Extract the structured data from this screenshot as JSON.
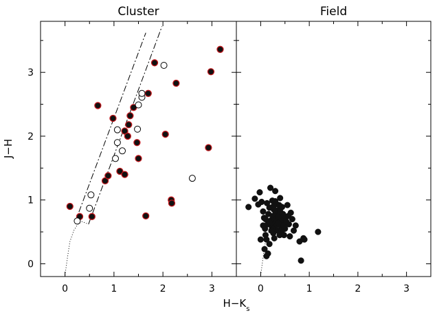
{
  "chart_data": [
    {
      "type": "scatter",
      "title": "Cluster",
      "xlabel": "H−K",
      "xlabel_sub": "s",
      "ylabel": "J−H",
      "xlim": [
        -0.5,
        3.5
      ],
      "ylim": [
        -0.2,
        3.8
      ],
      "x_ticks": [
        0,
        1,
        2,
        3
      ],
      "x_tick_labels": [
        "0",
        "1",
        "2",
        "3"
      ],
      "y_ticks": [
        0,
        1,
        2,
        3
      ],
      "y_tick_labels": [
        "0",
        "1",
        "2",
        "3"
      ],
      "grid": false,
      "series": [
        {
          "marker": "filled-circle-red-edge",
          "points": [
            [
              0.1,
              0.9
            ],
            [
              0.3,
              0.74
            ],
            [
              0.55,
              0.74
            ],
            [
              0.67,
              2.48
            ],
            [
              0.82,
              1.3
            ],
            [
              0.88,
              1.38
            ],
            [
              0.98,
              2.28
            ],
            [
              1.12,
              1.45
            ],
            [
              1.22,
              1.4
            ],
            [
              1.22,
              2.08
            ],
            [
              1.28,
              2.0
            ],
            [
              1.3,
              2.18
            ],
            [
              1.33,
              2.32
            ],
            [
              1.4,
              2.45
            ],
            [
              1.47,
              1.9
            ],
            [
              1.5,
              1.65
            ],
            [
              1.65,
              0.75
            ],
            [
              1.7,
              2.67
            ],
            [
              1.83,
              3.15
            ],
            [
              2.05,
              2.03
            ],
            [
              2.17,
              1.0
            ],
            [
              2.18,
              0.95
            ],
            [
              2.27,
              2.83
            ],
            [
              2.93,
              1.82
            ],
            [
              2.98,
              3.01
            ],
            [
              3.17,
              3.36
            ]
          ]
        },
        {
          "marker": "open-circle",
          "points": [
            [
              0.25,
              0.67
            ],
            [
              0.5,
              0.87
            ],
            [
              0.53,
              1.08
            ],
            [
              1.03,
              1.65
            ],
            [
              1.07,
              1.9
            ],
            [
              1.07,
              2.1
            ],
            [
              1.17,
              1.77
            ],
            [
              1.48,
              2.11
            ],
            [
              1.5,
              2.49
            ],
            [
              1.57,
              2.61
            ],
            [
              1.57,
              2.67
            ],
            [
              2.02,
              3.11
            ],
            [
              2.6,
              1.34
            ]
          ]
        }
      ],
      "curves": [
        {
          "style": "dotted",
          "points": [
            [
              0.0,
              -0.18
            ],
            [
              0.05,
              0.1
            ],
            [
              0.1,
              0.35
            ],
            [
              0.18,
              0.52
            ],
            [
              0.26,
              0.62
            ],
            [
              0.35,
              0.66
            ],
            [
              0.48,
              0.62
            ]
          ]
        },
        {
          "style": "dash-dot",
          "points": [
            [
              0.2,
              0.64
            ],
            [
              1.65,
              3.62
            ]
          ]
        },
        {
          "style": "dash-dot",
          "points": [
            [
              0.48,
              0.62
            ],
            [
              1.98,
              3.72
            ]
          ]
        }
      ]
    },
    {
      "type": "scatter",
      "title": "Field",
      "xlabel": "H−K",
      "xlabel_sub": "s",
      "xlim": [
        -0.5,
        3.5
      ],
      "ylim": [
        -0.2,
        3.8
      ],
      "x_ticks": [
        0,
        1,
        2,
        3
      ],
      "x_tick_labels": [
        "0",
        "1",
        "2",
        "3"
      ],
      "y_ticks": [
        0,
        1,
        2,
        3
      ],
      "y_tick_labels": [],
      "grid": false,
      "series": [
        {
          "marker": "filled-circle-black",
          "points": [
            [
              -0.25,
              0.89
            ],
            [
              -0.12,
              1.02
            ],
            [
              -0.05,
              0.93
            ],
            [
              -0.02,
              1.12
            ],
            [
              0.02,
              0.97
            ],
            [
              0.05,
              0.82
            ],
            [
              0.07,
              0.72
            ],
            [
              0.09,
              0.55
            ],
            [
              0.1,
              0.45
            ],
            [
              0.12,
              0.38
            ],
            [
              0.14,
              0.62
            ],
            [
              0.16,
              0.78
            ],
            [
              0.18,
              0.88
            ],
            [
              0.2,
              1.19
            ],
            [
              0.21,
              0.68
            ],
            [
              0.23,
              0.58
            ],
            [
              0.24,
              0.99
            ],
            [
              0.25,
              0.75
            ],
            [
              0.26,
              0.48
            ],
            [
              0.27,
              0.85
            ],
            [
              0.28,
              0.66
            ],
            [
              0.29,
              0.57
            ],
            [
              0.3,
              1.14
            ],
            [
              0.31,
              0.79
            ],
            [
              0.32,
              0.7
            ],
            [
              0.33,
              0.61
            ],
            [
              0.34,
              0.93
            ],
            [
              0.35,
              0.52
            ],
            [
              0.36,
              0.74
            ],
            [
              0.37,
              0.84
            ],
            [
              0.38,
              0.65
            ],
            [
              0.39,
              0.45
            ],
            [
              0.4,
              1.03
            ],
            [
              0.41,
              0.72
            ],
            [
              0.42,
              0.59
            ],
            [
              0.44,
              0.89
            ],
            [
              0.45,
              0.68
            ],
            [
              0.46,
              0.78
            ],
            [
              0.48,
              0.64
            ],
            [
              0.5,
              0.55
            ],
            [
              0.52,
              0.73
            ],
            [
              0.55,
              0.92
            ],
            [
              0.58,
              0.62
            ],
            [
              0.6,
              0.43
            ],
            [
              0.62,
              0.8
            ],
            [
              0.65,
              0.7
            ],
            [
              0.68,
              0.52
            ],
            [
              0.72,
              0.6
            ],
            [
              0.8,
              0.35
            ],
            [
              0.83,
              0.05
            ],
            [
              0.88,
              0.4
            ],
            [
              0.9,
              0.38
            ],
            [
              1.18,
              0.5
            ],
            [
              0.0,
              0.38
            ],
            [
              0.08,
              0.23
            ],
            [
              0.12,
              0.12
            ],
            [
              0.15,
              0.16
            ],
            [
              0.18,
              0.31
            ],
            [
              0.22,
              0.52
            ],
            [
              0.26,
              0.9
            ],
            [
              0.3,
              0.98
            ],
            [
              0.33,
              0.83
            ],
            [
              0.36,
              0.64
            ],
            [
              0.4,
              0.82
            ],
            [
              0.43,
              0.5
            ],
            [
              0.47,
              0.6
            ],
            [
              0.53,
              0.66
            ],
            [
              0.57,
              0.75
            ],
            [
              0.1,
              0.7
            ],
            [
              0.13,
              0.95
            ],
            [
              0.05,
              0.6
            ],
            [
              0.28,
              0.4
            ],
            [
              0.18,
              0.65
            ],
            [
              0.38,
              0.92
            ],
            [
              0.48,
              0.45
            ]
          ]
        }
      ],
      "curves": [
        {
          "style": "dotted",
          "points": [
            [
              0.0,
              -0.18
            ],
            [
              0.05,
              0.1
            ],
            [
              0.1,
              0.35
            ],
            [
              0.18,
              0.52
            ],
            [
              0.26,
              0.62
            ],
            [
              0.35,
              0.66
            ],
            [
              0.48,
              0.62
            ]
          ]
        }
      ]
    }
  ]
}
